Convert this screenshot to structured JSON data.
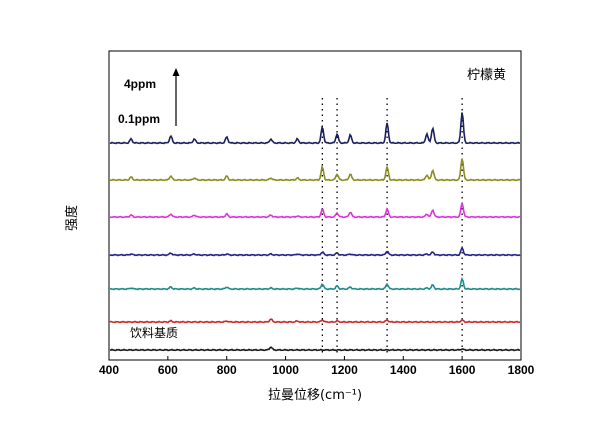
{
  "chart_data": {
    "type": "line",
    "xlabel": "拉曼位移(cm⁻¹)",
    "ylabel": "强度",
    "xlim": [
      400,
      1800
    ],
    "xticks": [
      400,
      600,
      800,
      1000,
      1200,
      1400,
      1600,
      1800
    ],
    "grid": false,
    "legend": "none",
    "annotations": {
      "top_right": "柠檬黄",
      "bottom_label": "饮料基质",
      "scale_top": "4ppm",
      "scale_bottom": "0.1ppm"
    },
    "reference_lines_x": [
      1125,
      1175,
      1345,
      1600
    ],
    "peak_positions": [
      475,
      610,
      690,
      800,
      950,
      1040,
      1125,
      1175,
      1220,
      1345,
      1480,
      1500,
      1600
    ],
    "series": [
      {
        "color": "#1a1a1a",
        "baseline": 350,
        "amps": {
          "475": 0,
          "610": 0,
          "690": 0,
          "800": 0,
          "950": 3,
          "1040": 0,
          "1125": 0,
          "1175": 0,
          "1220": 0,
          "1345": 0,
          "1480": 0,
          "1500": 0,
          "1600": 1
        }
      },
      {
        "color": "#cc2a2a",
        "baseline": 322,
        "amps": {
          "475": 0,
          "610": 1,
          "690": 0,
          "800": 1,
          "950": 3,
          "1040": 1,
          "1125": 2,
          "1175": 1,
          "1220": 0,
          "1345": 2,
          "1480": 0,
          "1500": 0,
          "1600": 2
        }
      },
      {
        "color": "#1f8c8c",
        "baseline": 289,
        "amps": {
          "475": 1,
          "610": 2,
          "690": 1,
          "800": 2,
          "950": 1,
          "1040": 1,
          "1125": 5,
          "1175": 3,
          "1220": 2,
          "1345": 5,
          "1480": 1,
          "1500": 4,
          "1600": 10
        }
      },
      {
        "color": "#24248c",
        "baseline": 255,
        "amps": {
          "475": 1,
          "610": 2,
          "690": 1,
          "800": 1,
          "950": 1,
          "1040": 1,
          "1125": 3,
          "1175": 2,
          "1220": 1,
          "1345": 4,
          "1480": 1,
          "1500": 3,
          "1600": 7
        }
      },
      {
        "color": "#dd33dd",
        "baseline": 217,
        "amps": {
          "475": 2,
          "610": 3,
          "690": 2,
          "800": 3,
          "950": 2,
          "1040": 1,
          "1125": 8,
          "1175": 4,
          "1220": 5,
          "1345": 8,
          "1480": 3,
          "1500": 7,
          "1600": 14
        }
      },
      {
        "color": "#8c8c1f",
        "baseline": 180,
        "amps": {
          "475": 3,
          "610": 4,
          "690": 2,
          "800": 4,
          "950": 2,
          "1040": 2,
          "1125": 13,
          "1175": 6,
          "1220": 6,
          "1345": 13,
          "1480": 5,
          "1500": 10,
          "1600": 22
        }
      },
      {
        "color": "#1a2060",
        "baseline": 143,
        "amps": {
          "475": 4,
          "610": 7,
          "690": 4,
          "800": 6,
          "950": 4,
          "1040": 4,
          "1125": 16,
          "1175": 9,
          "1220": 8,
          "1345": 20,
          "1480": 9,
          "1500": 15,
          "1600": 31
        }
      }
    ]
  }
}
